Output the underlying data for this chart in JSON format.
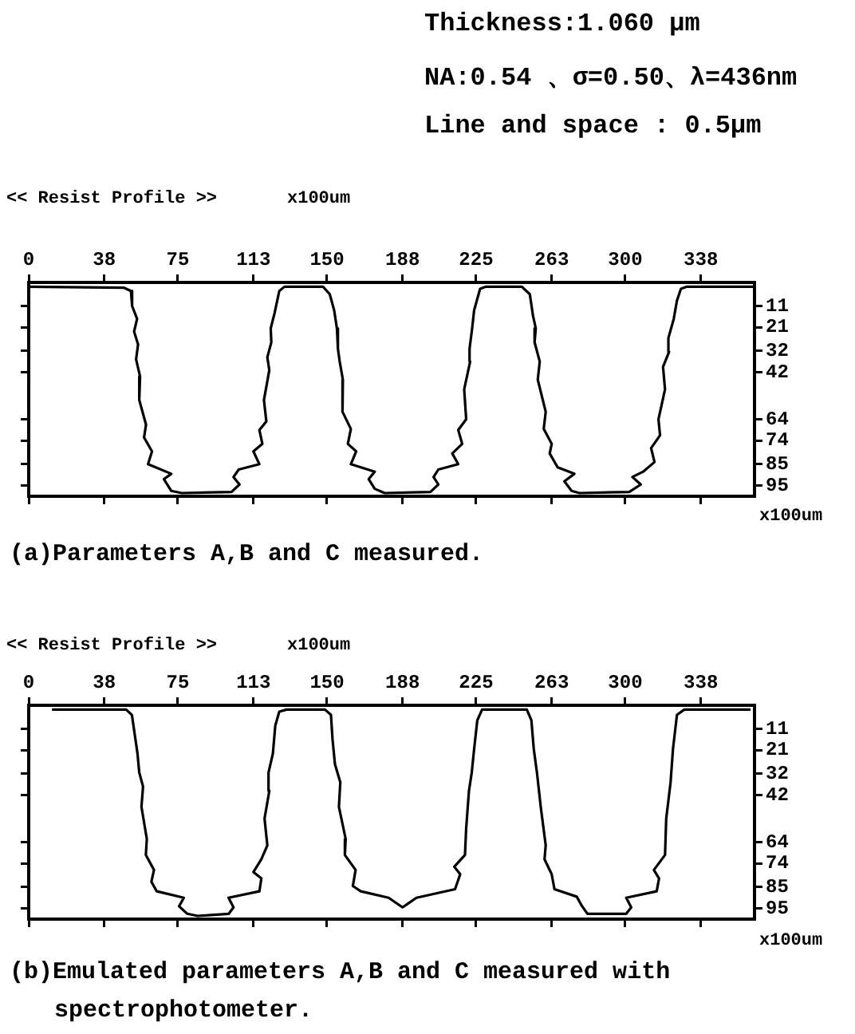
{
  "chart_data": [
    {
      "type": "line",
      "title": "<< Resist Profile >>",
      "x2label": "x100um",
      "xlabel": "x100um",
      "marker": "none",
      "annotations": [
        "Thickness:1.060 µm",
        "NA:0.54 、σ=0.50、λ=436nm",
        "Line and space : 0.5µm",
        "(a)Parameters A,B and C measured."
      ],
      "xlim": [
        0,
        365
      ],
      "xticks": [
        0,
        38,
        75,
        113,
        150,
        188,
        225,
        263,
        300,
        338
      ],
      "ylim": [
        100,
        0
      ],
      "yticks": [
        11,
        21,
        32,
        42,
        64,
        74,
        85,
        95
      ],
      "series": [
        {
          "color": "#000000",
          "x": [
            0,
            48,
            51.4,
            52,
            54.5,
            53,
            55,
            54,
            56,
            55.6,
            59,
            58,
            62,
            60,
            71.7,
            68,
            71.7,
            77,
            102,
            106,
            103,
            105.6,
            116,
            113,
            117.5,
            116,
            119.5,
            118.3,
            121,
            120,
            122,
            121.7,
            123.6,
            126,
            128.6,
            148,
            151.4,
            153.6,
            155,
            155.5,
            156.4,
            158,
            157.8,
            162,
            160.5,
            164.7,
            162,
            174,
            171,
            174,
            179,
            202,
            206,
            203.6,
            206,
            216,
            213,
            218,
            216,
            220,
            219,
            222,
            221.7,
            223,
            224,
            227,
            230,
            248,
            252,
            253.6,
            255,
            254.4,
            257,
            256,
            260,
            259,
            263,
            262,
            266,
            274.4,
            269.4,
            273,
            277,
            302,
            307.8,
            303.6,
            309,
            314.7,
            313,
            317.5,
            316.7,
            320,
            319,
            322,
            321.7,
            324.4,
            326,
            328,
            331,
            365
          ],
          "values": [
            2,
            2.5,
            4,
            11,
            17,
            23,
            29,
            36,
            44,
            55,
            66.5,
            72.5,
            79,
            85,
            89.5,
            92,
            97.5,
            98.5,
            98,
            94.5,
            91,
            87.5,
            85,
            79,
            75.5,
            69,
            65,
            55,
            41,
            35,
            28,
            21.5,
            14.5,
            4,
            2,
            2,
            5.5,
            13,
            21.5,
            31,
            37,
            45.5,
            60.5,
            68.5,
            75.5,
            79,
            85,
            88.5,
            92,
            96.5,
            98.5,
            98,
            94.5,
            91,
            87.5,
            85,
            80,
            75.5,
            69,
            64,
            50,
            37,
            31,
            21.5,
            13,
            3,
            2,
            2,
            5.5,
            15.5,
            21.5,
            28,
            37,
            45.5,
            60.5,
            68.5,
            75.5,
            80,
            86.5,
            89.5,
            93,
            97.5,
            98.5,
            98,
            94.5,
            91,
            88.5,
            84,
            77.5,
            71.5,
            64,
            50,
            39.5,
            32.5,
            26,
            17,
            8.5,
            3,
            2,
            2
          ]
        }
      ]
    },
    {
      "type": "line",
      "title": "<< Resist Profile >>",
      "x2label": "x100um",
      "xlabel": "x100um",
      "marker": "none",
      "annotations": [
        "(b)Emulated parameters A,B and C measured with spectrophotometer."
      ],
      "xlim": [
        0,
        365
      ],
      "xticks": [
        0,
        38,
        75,
        113,
        150,
        188,
        225,
        263,
        300,
        338
      ],
      "ylim": [
        100,
        0
      ],
      "yticks": [
        11,
        21,
        32,
        42,
        64,
        74,
        85,
        95
      ],
      "series": [
        {
          "color": "#000000",
          "x": [
            11.7,
            49,
            51.9,
            53.3,
            54.7,
            55.6,
            57.5,
            56.7,
            59.4,
            58.9,
            63,
            61.7,
            64.4,
            78,
            75.6,
            79.7,
            85,
            100.6,
            103,
            100.5,
            116,
            117,
            113,
            117,
            120,
            118.6,
            121,
            120.6,
            122.8,
            124,
            126,
            129.7,
            149,
            152,
            152.8,
            154,
            156.7,
            156,
            159.4,
            159,
            164.4,
            163,
            167,
            181,
            188,
            195,
            214.4,
            217,
            214,
            219.4,
            220,
            221.4,
            222.8,
            224,
            225.6,
            228,
            250.5,
            252.8,
            254,
            255.6,
            257.5,
            260,
            259.4,
            263,
            264.4,
            275.6,
            278.3,
            281,
            300.5,
            303,
            300.5,
            315.8,
            317,
            314.4,
            320,
            320.6,
            322.8,
            324,
            326,
            329.7,
            363
          ],
          "values": [
            2,
            2,
            4.5,
            13.5,
            22.5,
            31.5,
            38,
            47.5,
            62.5,
            70,
            77,
            82.5,
            87,
            90,
            94,
            97.5,
            98.5,
            97.5,
            94.5,
            90,
            87,
            81,
            78,
            72,
            65.5,
            53,
            40,
            31.5,
            22.5,
            9.5,
            3,
            2,
            2,
            4.5,
            16,
            27.5,
            36,
            47.5,
            62.5,
            70,
            77,
            84.5,
            87,
            90,
            94.5,
            90,
            86,
            79,
            75.5,
            70,
            57.5,
            40,
            31.5,
            20.5,
            7,
            2,
            2,
            7,
            20.5,
            31.5,
            47.5,
            65.5,
            72,
            79,
            86,
            89.5,
            94,
            97.5,
            97.5,
            94.5,
            90,
            87,
            81,
            77,
            70,
            53,
            36,
            20.5,
            4.5,
            2,
            2
          ]
        }
      ]
    }
  ]
}
